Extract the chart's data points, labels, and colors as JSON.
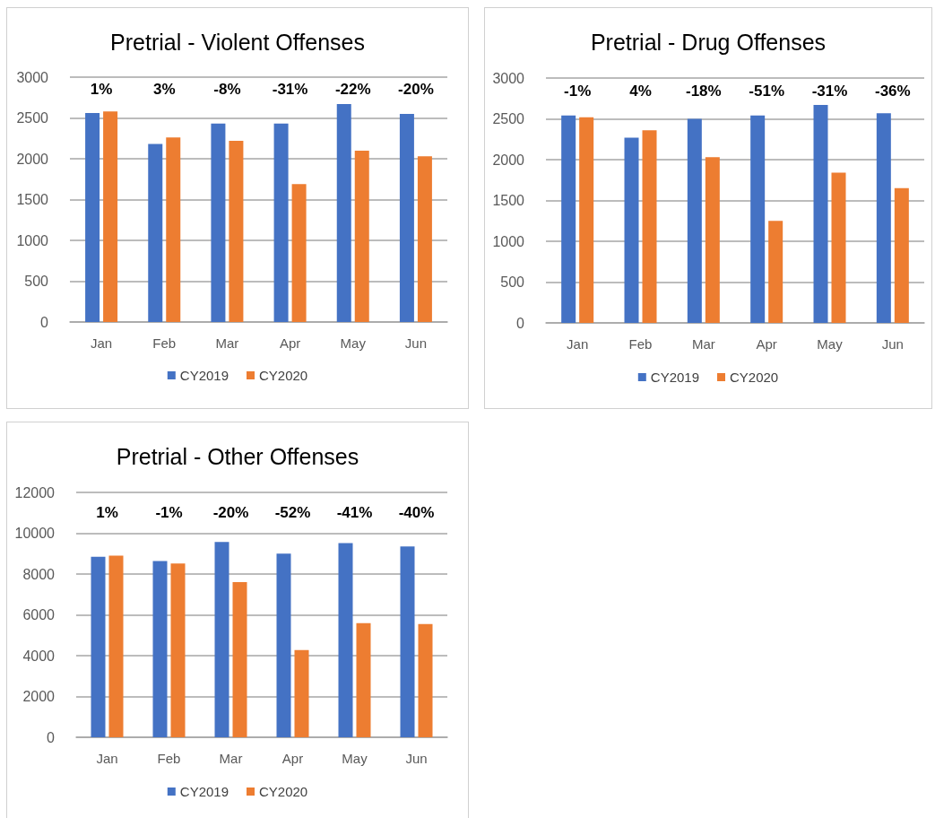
{
  "chart_data": [
    {
      "type": "bar",
      "title": "Pretrial - Violent Offenses",
      "categories": [
        "Jan",
        "Feb",
        "Mar",
        "Apr",
        "May",
        "Jun"
      ],
      "series": [
        {
          "name": "CY2019",
          "color": "#4472c4",
          "values": [
            2560,
            2180,
            2430,
            2430,
            2670,
            2550
          ]
        },
        {
          "name": "CY2020",
          "color": "#ed7d31",
          "values": [
            2580,
            2260,
            2220,
            1690,
            2100,
            2030
          ]
        }
      ],
      "ylim": [
        0,
        3000
      ],
      "yticks": [
        0,
        500,
        1000,
        1500,
        2000,
        2500,
        3000
      ],
      "grid": "y",
      "legend": "bottom",
      "annotations": [
        "1%",
        "3%",
        "-8%",
        "-31%",
        "-22%",
        "-20%"
      ]
    },
    {
      "type": "bar",
      "title": "Pretrial - Drug Offenses",
      "categories": [
        "Jan",
        "Feb",
        "Mar",
        "Apr",
        "May",
        "Jun"
      ],
      "series": [
        {
          "name": "CY2019",
          "color": "#4472c4",
          "values": [
            2540,
            2270,
            2500,
            2540,
            2670,
            2570
          ]
        },
        {
          "name": "CY2020",
          "color": "#ed7d31",
          "values": [
            2520,
            2360,
            2030,
            1250,
            1840,
            1650
          ]
        }
      ],
      "ylim": [
        0,
        3000
      ],
      "yticks": [
        0,
        500,
        1000,
        1500,
        2000,
        2500,
        3000
      ],
      "grid": "y",
      "legend": "bottom",
      "annotations": [
        "-1%",
        "4%",
        "-18%",
        "-51%",
        "-31%",
        "-36%"
      ]
    },
    {
      "type": "bar",
      "title": "Pretrial - Other Offenses",
      "categories": [
        "Jan",
        "Feb",
        "Mar",
        "Apr",
        "May",
        "Jun"
      ],
      "series": [
        {
          "name": "CY2019",
          "color": "#4472c4",
          "values": [
            8850,
            8640,
            9570,
            9000,
            9520,
            9350
          ]
        },
        {
          "name": "CY2020",
          "color": "#ed7d31",
          "values": [
            8900,
            8520,
            7600,
            4280,
            5590,
            5550
          ]
        }
      ],
      "ylim": [
        0,
        12000
      ],
      "yticks": [
        0,
        2000,
        4000,
        6000,
        8000,
        10000,
        12000
      ],
      "grid": "y",
      "legend": "bottom",
      "annotations": [
        "1%",
        "-1%",
        "-20%",
        "-52%",
        "-41%",
        "-40%"
      ]
    }
  ]
}
